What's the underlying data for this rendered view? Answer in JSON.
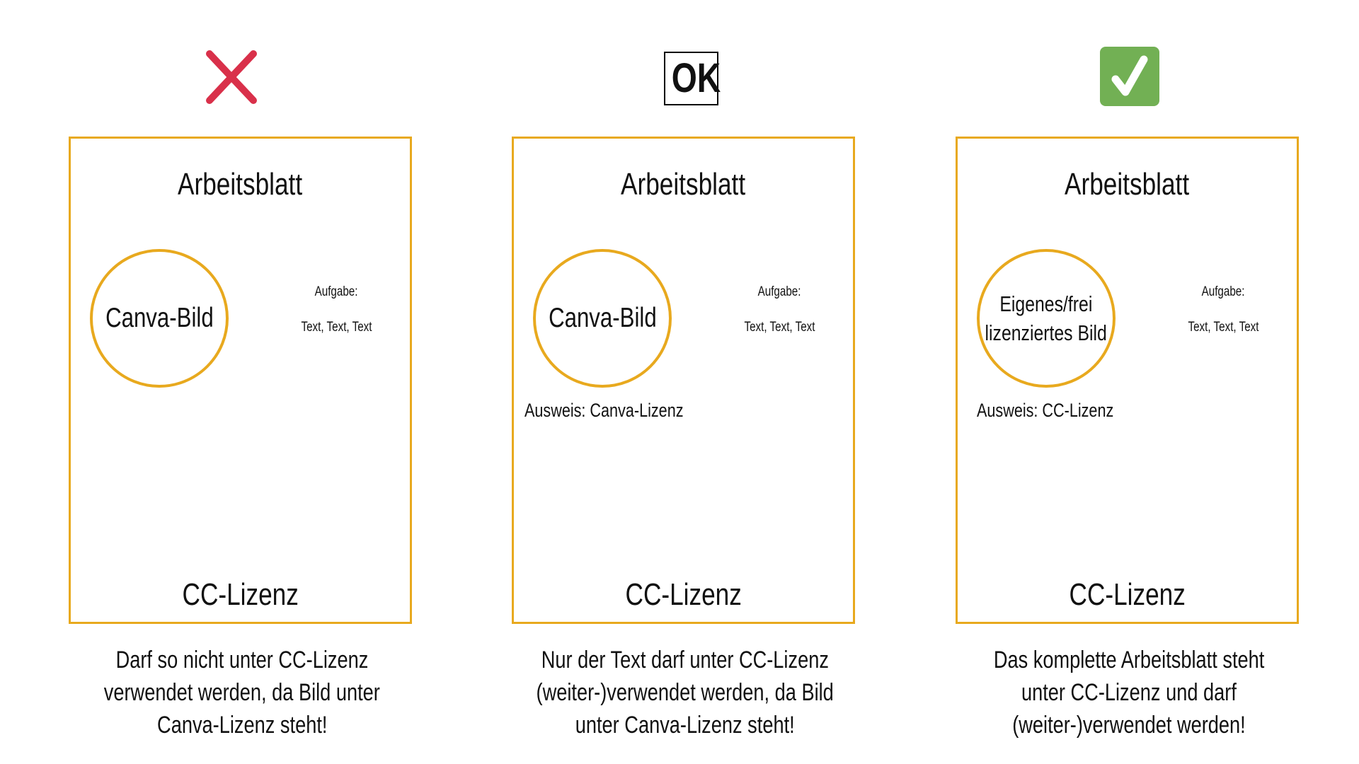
{
  "colors": {
    "border": "#E8A91E",
    "cross": "#D9304A",
    "check_bg": "#72B054",
    "check_mark": "#FFFFFF",
    "ok_border": "#000000"
  },
  "panels": [
    {
      "status_icon": "cross-icon",
      "title": "Arbeitsblatt",
      "image_label": "Canva-Bild",
      "task_label": "Aufgabe:",
      "task_text": "Text, Text, Text",
      "attribution": "",
      "footer": "CC-Lizenz",
      "caption": [
        "Darf so nicht unter CC-Lizenz",
        "verwendet werden, da Bild unter",
        "Canva-Lizenz steht!"
      ]
    },
    {
      "status_icon": "ok-icon",
      "status_text": "OK",
      "title": "Arbeitsblatt",
      "image_label": "Canva-Bild",
      "task_label": "Aufgabe:",
      "task_text": "Text, Text, Text",
      "attribution": "Ausweis: Canva-Lizenz",
      "footer": "CC-Lizenz",
      "caption": [
        "Nur der Text darf unter CC-Lizenz",
        "(weiter-)verwendet werden, da Bild",
        "unter Canva-Lizenz steht!"
      ]
    },
    {
      "status_icon": "checkmark-icon",
      "title": "Arbeitsblatt",
      "image_label_lines": [
        "Eigenes/frei",
        "lizenziertes Bild"
      ],
      "task_label": "Aufgabe:",
      "task_text": "Text, Text, Text",
      "attribution": "Ausweis: CC-Lizenz",
      "footer": "CC-Lizenz",
      "caption": [
        "Das komplette Arbeitsblatt steht",
        "unter CC-Lizenz und darf",
        "(weiter-)verwendet werden!"
      ]
    }
  ]
}
